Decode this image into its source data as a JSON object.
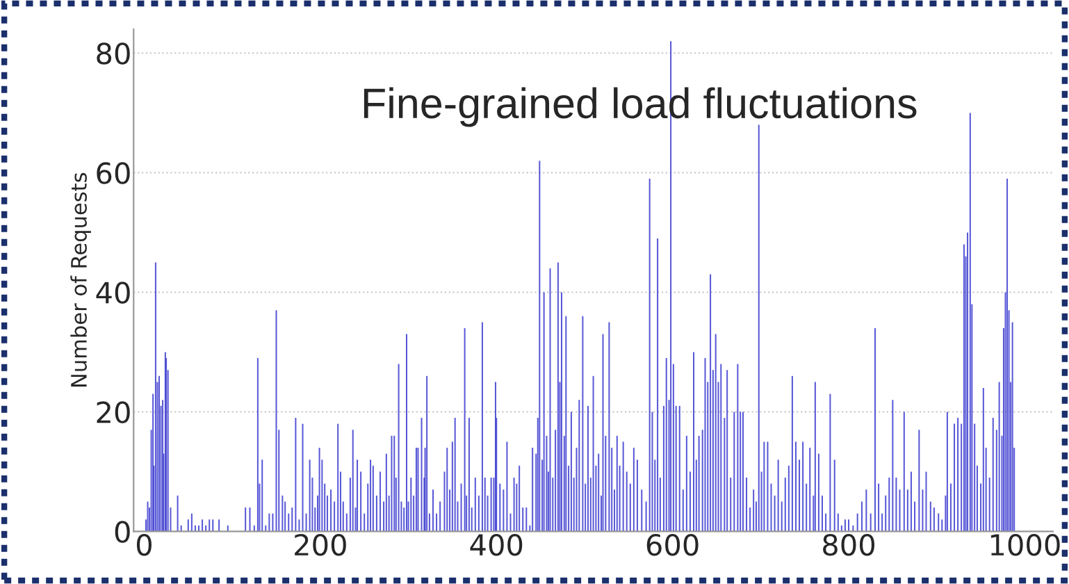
{
  "chart_data": {
    "type": "bar",
    "title": "Fine-grained load fluctuations",
    "ylabel": "Number of Requests",
    "x": [
      2,
      4,
      6,
      8,
      10,
      11,
      13,
      15,
      17,
      19,
      21,
      22,
      24,
      25,
      27,
      30,
      38,
      42,
      50,
      54,
      58,
      62,
      66,
      70,
      74,
      78,
      85,
      95,
      115,
      120,
      125,
      129,
      131,
      134,
      138,
      142,
      146,
      150,
      153,
      157,
      160,
      164,
      168,
      172,
      176,
      180,
      184,
      188,
      191,
      194,
      197,
      199,
      202,
      205,
      208,
      212,
      216,
      220,
      223,
      226,
      230,
      234,
      237,
      240,
      242,
      246,
      250,
      254,
      257,
      260,
      264,
      268,
      272,
      275,
      278,
      281,
      284,
      286,
      289,
      292,
      295,
      298,
      300,
      303,
      306,
      309,
      311,
      315,
      318,
      319,
      321,
      324,
      328,
      332,
      336,
      341,
      344,
      347,
      350,
      353,
      356,
      360,
      364,
      366,
      369,
      372,
      376,
      380,
      384,
      387,
      390,
      394,
      397,
      399,
      400,
      404,
      408,
      412,
      416,
      420,
      423,
      426,
      430,
      434,
      438,
      441,
      445,
      447,
      449,
      452,
      454,
      457,
      459,
      461,
      464,
      467,
      470,
      472,
      474,
      477,
      479,
      482,
      485,
      488,
      491,
      494,
      498,
      501,
      504,
      507,
      510,
      513,
      516,
      519,
      521,
      524,
      528,
      531,
      534,
      537,
      540,
      544,
      548,
      552,
      556,
      560,
      565,
      570,
      574,
      577,
      580,
      583,
      586,
      590,
      593,
      596,
      598,
      601,
      604,
      608,
      612,
      616,
      620,
      624,
      627,
      630,
      634,
      637,
      640,
      643,
      646,
      649,
      652,
      655,
      659,
      662,
      666,
      670,
      674,
      677,
      680,
      684,
      688,
      692,
      695,
      698,
      701,
      704,
      708,
      712,
      716,
      720,
      724,
      728,
      732,
      736,
      740,
      744,
      748,
      752,
      756,
      760,
      762,
      766,
      770,
      774,
      779,
      784,
      788,
      792,
      796,
      800,
      805,
      810,
      815,
      820,
      825,
      830,
      834,
      838,
      842,
      846,
      850,
      854,
      858,
      863,
      867,
      871,
      875,
      880,
      884,
      888,
      893,
      897,
      902,
      906,
      910,
      912,
      916,
      920,
      924,
      928,
      931,
      933,
      935,
      938,
      940,
      943,
      946,
      950,
      953,
      956,
      960,
      964,
      968,
      971,
      974,
      976,
      978,
      980,
      982,
      984,
      986,
      988
    ],
    "values": [
      2,
      5,
      4,
      17,
      23,
      11,
      45,
      25,
      26,
      21,
      22,
      13,
      30,
      29,
      27,
      4,
      6,
      1,
      2,
      3,
      1,
      1,
      2,
      1,
      2,
      2,
      2,
      1,
      4,
      4,
      1,
      29,
      8,
      12,
      1,
      3,
      3,
      37,
      17,
      6,
      5,
      3,
      4,
      19,
      2,
      18,
      3,
      12,
      9,
      4,
      6,
      14,
      12,
      8,
      6,
      7,
      5,
      18,
      10,
      5,
      3,
      9,
      17,
      4,
      12,
      10,
      3,
      8,
      12,
      11,
      6,
      10,
      5,
      13,
      6,
      16,
      16,
      9,
      28,
      5,
      4,
      33,
      5,
      9,
      6,
      14,
      14,
      19,
      9,
      14,
      26,
      3,
      7,
      3,
      5,
      10,
      14,
      7,
      15,
      19,
      5,
      8,
      34,
      6,
      19,
      4,
      9,
      6,
      35,
      9,
      6,
      9,
      9,
      25,
      19,
      8,
      7,
      15,
      3,
      9,
      8,
      11,
      4,
      4,
      1,
      14,
      13,
      19,
      62,
      12,
      40,
      16,
      10,
      44,
      9,
      17,
      45,
      25,
      40,
      16,
      36,
      11,
      20,
      9,
      14,
      22,
      36,
      8,
      21,
      9,
      26,
      11,
      13,
      6,
      33,
      16,
      35,
      14,
      7,
      16,
      11,
      15,
      10,
      8,
      14,
      12,
      7,
      5,
      59,
      20,
      12,
      49,
      9,
      21,
      29,
      22,
      82,
      28,
      21,
      21,
      7,
      16,
      10,
      30,
      12,
      16,
      17,
      29,
      25,
      43,
      27,
      33,
      25,
      28,
      19,
      27,
      9,
      20,
      28,
      20,
      20,
      9,
      4,
      7,
      5,
      68,
      10,
      15,
      15,
      8,
      6,
      12,
      5,
      9,
      11,
      26,
      15,
      12,
      15,
      8,
      14,
      6,
      25,
      13,
      6,
      3,
      23,
      12,
      3,
      1,
      2,
      2,
      1,
      3,
      5,
      7,
      3,
      34,
      8,
      3,
      6,
      9,
      22,
      9,
      7,
      20,
      7,
      10,
      5,
      17,
      7,
      10,
      5,
      4,
      3,
      2,
      6,
      20,
      8,
      18,
      19,
      18,
      48,
      46,
      50,
      70,
      38,
      18,
      11,
      8,
      24,
      14,
      9,
      19,
      17,
      25,
      16,
      34,
      40,
      59,
      37,
      25,
      35,
      14
    ],
    "color": "#3b3bd0",
    "ylim": [
      0,
      84
    ],
    "yticks": [
      0,
      20,
      40,
      60,
      80
    ],
    "xlim": [
      -12,
      1032
    ],
    "xticks": [
      0,
      200,
      400,
      600,
      800,
      1000
    ],
    "grid": "y"
  }
}
